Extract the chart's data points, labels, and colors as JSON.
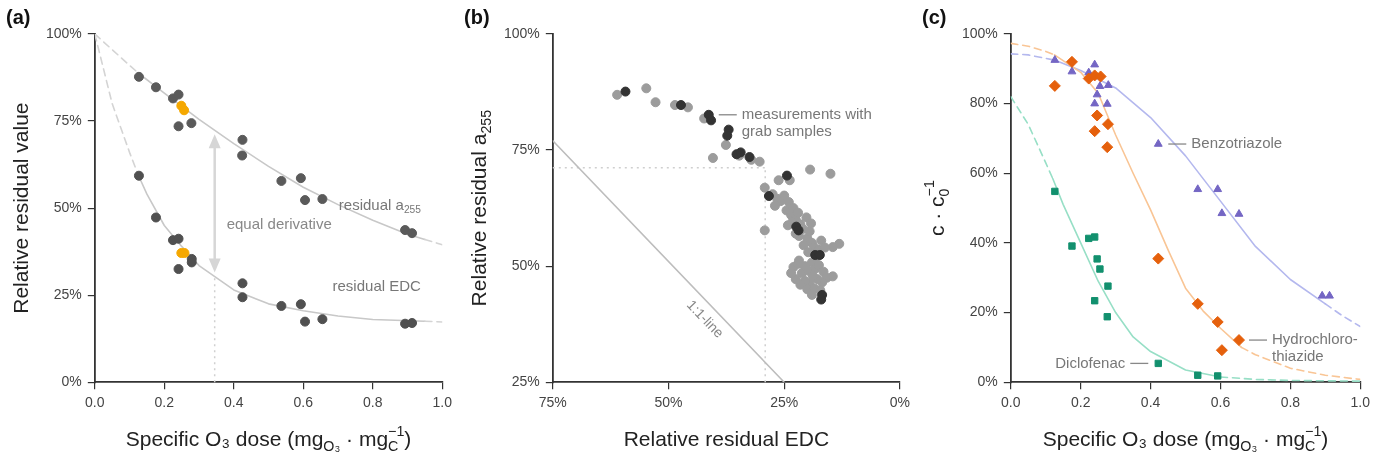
{
  "chart_data": [
    {
      "type": "scatter",
      "title": "(a)",
      "xlabel": "Specific O₃ dose (mg$_{O₃}$ · mg$_{C}$$^{−1}$)",
      "ylabel": "Relative residual value",
      "xlim": [
        0,
        1
      ],
      "ylim": [
        0,
        100
      ],
      "xticks": [
        {
          "value": 0,
          "label": "0.0"
        },
        0.2,
        0.4,
        0.6,
        0.8,
        {
          "value": 1,
          "label": "1.0"
        }
      ],
      "yticks": [
        {
          "value": 0,
          "label": "0%"
        },
        {
          "value": 25,
          "label": "25%"
        },
        {
          "value": 50,
          "label": "50%"
        },
        {
          "value": 75,
          "label": "75%"
        },
        {
          "value": 100,
          "label": "100%"
        }
      ],
      "series": [
        {
          "type": "line",
          "color": "#d4d4d4",
          "line_style": "dashed",
          "marker": "none",
          "x": [
            0,
            0.05,
            0.1,
            0.125
          ],
          "values": [
            100,
            95.5,
            91,
            88.8
          ]
        },
        {
          "type": "line",
          "name": "residual a$_{255}$",
          "color": "#c8c8c8",
          "line_style": "solid",
          "marker": "none",
          "x": [
            0.125,
            0.2,
            0.3,
            0.4,
            0.5,
            0.6,
            0.7,
            0.8,
            0.9,
            0.95
          ],
          "values": [
            88.8,
            83,
            75.5,
            68.5,
            62,
            56,
            51,
            46.5,
            42.5,
            41
          ]
        },
        {
          "type": "line",
          "color": "#d4d4d4",
          "line_style": "dashed",
          "marker": "none",
          "x": [
            0.95,
            1
          ],
          "values": [
            41,
            39.5
          ]
        },
        {
          "type": "line",
          "color": "#d4d4d4",
          "line_style": "dashed",
          "marker": "none",
          "x": [
            0,
            0.05,
            0.1,
            0.125
          ],
          "values": [
            100,
            80,
            66,
            59.5
          ]
        },
        {
          "type": "line",
          "name": "residual EDC",
          "color": "#c8c8c8",
          "line_style": "solid",
          "marker": "none",
          "x": [
            0.125,
            0.15,
            0.2,
            0.25,
            0.3,
            0.4,
            0.5,
            0.6,
            0.7,
            0.8,
            0.95
          ],
          "values": [
            59.5,
            54,
            45,
            39,
            33.5,
            26.5,
            22.5,
            20.5,
            19,
            18,
            17.5
          ]
        },
        {
          "type": "line",
          "color": "#d4d4d4",
          "line_style": "dashed",
          "marker": "none",
          "x": [
            0.95,
            1
          ],
          "values": [
            17.5,
            17.3
          ]
        },
        {
          "color": "#5a5a5a",
          "marker": "circle",
          "x": [
            0.127,
            0.176,
            0.225,
            0.241,
            0.241,
            0.278,
            0.425,
            0.424,
            0.537,
            0.593,
            0.605,
            0.655,
            0.893,
            0.913
          ],
          "values": [
            87.7,
            84.7,
            81.5,
            82.6,
            73.5,
            74.4,
            69.6,
            65.1,
            57.8,
            58.6,
            52.3,
            52.6,
            43.7,
            42.8
          ]
        },
        {
          "color": "#f5a800",
          "marker": "circle",
          "x": [
            0.249,
            0.257
          ],
          "values": [
            79.4,
            78.1
          ]
        },
        {
          "color": "#505050",
          "marker": "circle",
          "x": [
            0.127,
            0.176,
            0.225,
            0.241,
            0.241,
            0.279,
            0.279,
            0.425,
            0.425,
            0.537,
            0.593,
            0.605,
            0.655,
            0.893,
            0.913
          ],
          "values": [
            59.3,
            47.3,
            40.8,
            41.2,
            32.5,
            35.4,
            34.4,
            28.4,
            24.4,
            21.9,
            22.4,
            17.4,
            18.1,
            16.8,
            17.0
          ]
        },
        {
          "color": "#f5a800",
          "marker": "circle",
          "x": [
            0.249,
            0.258
          ],
          "values": [
            37.1,
            37.1
          ]
        }
      ],
      "ref_lines": [
        {
          "axis": "x",
          "value": 0.345,
          "color": "#d0d0d0",
          "line_style": "dotted"
        }
      ],
      "annotations": [
        "equal derivative"
      ]
    },
    {
      "type": "scatter",
      "title": "(b)",
      "xlabel": "Relative residual EDC",
      "ylabel": "Relative residual a$_{255}$",
      "xlim": [
        75,
        0
      ],
      "ylim": [
        25,
        100
      ],
      "xticks": [
        {
          "value": 75,
          "label": "75%"
        },
        {
          "value": 50,
          "label": "50%"
        },
        {
          "value": 25,
          "label": "25%"
        },
        {
          "value": 0,
          "label": "0%"
        }
      ],
      "yticks": [
        {
          "value": 25,
          "label": "25%"
        },
        {
          "value": 50,
          "label": "50%"
        },
        {
          "value": 75,
          "label": "75%"
        },
        {
          "value": 100,
          "label": "100%"
        }
      ],
      "series": [
        {
          "type": "line",
          "color": "#bdbdbd",
          "line_style": "solid",
          "marker": "none",
          "x": [
            75,
            25
          ],
          "values": [
            77,
            25
          ]
        },
        {
          "color": "#9c9c9c",
          "marker": "circle",
          "x": [
            61.1,
            54.8,
            52.8,
            48.6,
            45.8,
            42.3,
            40.4,
            37.6,
            34.7,
            32.1,
            30.3,
            19.4,
            15.0,
            26.2,
            23.8,
            29.2,
            29.2,
            13.1,
            14.5,
            27.5,
            26.5,
            25.8,
            27.0,
            25.0,
            24.0,
            24.5,
            23.5,
            23.0,
            22.5,
            22.0,
            21.5,
            23.2,
            21.0,
            21.8,
            20.0,
            19.5,
            19.0,
            20.8,
            18.5,
            19.8,
            17.5,
            18.0,
            22.5,
            24.2,
            20.2,
            19.2,
            17.0,
            16.2,
            23.0,
            22.0,
            21.2,
            20.5,
            19.8,
            19.0,
            18.2,
            17.5,
            16.5,
            15.8,
            16.8,
            17.8,
            18.8,
            19.5,
            20.5,
            21.5,
            22.5,
            20.0,
            18.5,
            17.2,
            19.0,
            21.8,
            14.5,
            23.5
          ],
          "values": [
            86.9,
            88.3,
            85.3,
            84.7,
            84.2,
            81.8,
            73.3,
            76.1,
            73.8,
            72.9,
            72.5,
            70.8,
            69.9,
            68.5,
            68.5,
            66.9,
            57.7,
            54.8,
            54.1,
            65.5,
            64.5,
            64.0,
            63.0,
            65.2,
            63.8,
            62.0,
            61.0,
            62.5,
            60.0,
            61.5,
            59.0,
            59.5,
            58.0,
            56.5,
            56.0,
            57.5,
            55.0,
            54.5,
            54.0,
            53.0,
            53.5,
            52.0,
            57.0,
            58.8,
            60.5,
            59.2,
            55.5,
            54.0,
            49.8,
            50.5,
            48.5,
            50.0,
            49.0,
            50.8,
            49.5,
            50.2,
            48.8,
            47.5,
            46.5,
            47.2,
            47.9,
            46.2,
            46.8,
            46.0,
            47.2,
            45.0,
            45.2,
            44.8,
            43.8,
            51.2,
            47.8,
            48.5
          ]
        },
        {
          "color": "#333333",
          "marker": "circle",
          "x": [
            59.3,
            47.3,
            41.3,
            40.8,
            37.0,
            37.3,
            35.3,
            34.4,
            32.5,
            24.4,
            28.3,
            22.4,
            21.9,
            18.3,
            17.3,
            16.8,
            17.0
          ],
          "values": [
            87.6,
            84.7,
            82.6,
            81.4,
            79.4,
            78.1,
            74.1,
            74.5,
            73.5,
            69.5,
            65.1,
            58.5,
            57.7,
            52.4,
            52.4,
            43.8,
            42.8
          ]
        }
      ],
      "ref_lines": [
        {
          "axis": "x",
          "value": 29.1,
          "color": "#cfcfcf",
          "line_style": "dotted"
        },
        {
          "axis": "y",
          "value": 71.2,
          "color": "#cfcfcf",
          "line_style": "dotted"
        }
      ],
      "annotations": [
        {
          "text": "measurements with\ngrab samples",
          "x": 41.3,
          "y": 82.6
        },
        "1:1-line"
      ]
    },
    {
      "type": "scatter",
      "title": "(c)",
      "xlabel": "Specific O₃ dose (mg$_{O₃}$ · mg$_{C}$$^{−1}$)",
      "ylabel": "c · c$_{0}$$^{−1}$",
      "xlim": [
        0,
        1
      ],
      "ylim": [
        0,
        100
      ],
      "xticks": [
        {
          "value": 0,
          "label": "0.0"
        },
        0.2,
        0.4,
        0.6,
        0.8,
        {
          "value": 1,
          "label": "1.0"
        }
      ],
      "yticks": [
        {
          "value": 0,
          "label": "0%"
        },
        {
          "value": 20,
          "label": "20%"
        },
        {
          "value": 40,
          "label": "40%"
        },
        {
          "value": 60,
          "label": "60%"
        },
        {
          "value": 80,
          "label": "80%"
        },
        {
          "value": 100,
          "label": "100%"
        }
      ],
      "series": [
        {
          "type": "line",
          "color": "#b4b8ee",
          "line_style": "dashed",
          "marker": "none",
          "x": [
            0,
            0.05,
            0.1,
            0.125
          ],
          "values": [
            94.3,
            94,
            93,
            92.5
          ]
        },
        {
          "type": "line",
          "color": "#b4b8ee",
          "line_style": "solid",
          "marker": "none",
          "x": [
            0.125,
            0.2,
            0.3,
            0.4,
            0.5,
            0.6,
            0.7,
            0.8,
            0.9
          ],
          "values": [
            92.5,
            89.5,
            84.5,
            76,
            65,
            52,
            39,
            29.5,
            22.5
          ]
        },
        {
          "type": "line",
          "color": "#b4b8ee",
          "line_style": "dashed",
          "marker": "none",
          "x": [
            0.9,
            0.95,
            1
          ],
          "values": [
            22.5,
            19,
            16
          ]
        },
        {
          "type": "line",
          "color": "#f9c595",
          "line_style": "dashed",
          "marker": "none",
          "x": [
            0,
            0.05,
            0.1,
            0.125
          ],
          "values": [
            97.3,
            96.5,
            95,
            94
          ]
        },
        {
          "type": "line",
          "color": "#f9c595",
          "line_style": "solid",
          "marker": "none",
          "x": [
            0.125,
            0.2,
            0.25,
            0.3,
            0.35,
            0.4,
            0.45,
            0.5,
            0.55,
            0.6,
            0.66
          ],
          "values": [
            94,
            89,
            83,
            71,
            60,
            49.5,
            38,
            27,
            20.5,
            15.5,
            10
          ]
        },
        {
          "type": "line",
          "color": "#f9c595",
          "line_style": "dashed",
          "marker": "none",
          "x": [
            0.66,
            0.7,
            0.8,
            0.9,
            1
          ],
          "values": [
            10,
            7.9,
            4,
            2,
            0.8
          ]
        },
        {
          "type": "line",
          "color": "#97dfc6",
          "line_style": "dashed",
          "marker": "none",
          "x": [
            0,
            0.05,
            0.1,
            0.12
          ],
          "values": [
            82,
            74,
            63,
            58.5
          ]
        },
        {
          "type": "line",
          "color": "#97dfc6",
          "line_style": "solid",
          "marker": "none",
          "x": [
            0.12,
            0.15,
            0.2,
            0.25,
            0.3,
            0.35,
            0.4,
            0.5,
            0.6
          ],
          "values": [
            58.5,
            51,
            40,
            29,
            20,
            13,
            8.8,
            3.5,
            1.5
          ]
        },
        {
          "type": "line",
          "color": "#97dfc6",
          "line_style": "dashed",
          "marker": "none",
          "x": [
            0.6,
            0.7,
            0.8,
            1
          ],
          "values": [
            1.5,
            0.8,
            0.5,
            0.3
          ]
        },
        {
          "color": "#7466c4",
          "marker": "triangle",
          "x": [
            0.126,
            0.175,
            0.223,
            0.24,
            0.247,
            0.255,
            0.24,
            0.279,
            0.276,
            0.422,
            0.535,
            0.592,
            0.604,
            0.653,
            0.891,
            0.912
          ],
          "values": [
            92.5,
            89.2,
            88.9,
            91.2,
            82.6,
            85.0,
            80.0,
            85.3,
            79.9,
            68.4,
            55.4,
            55.4,
            48.5,
            48.3,
            24.8,
            24.8
          ]
        },
        {
          "color": "#e5600c",
          "marker": "diamond",
          "x": [
            0.126,
            0.175,
            0.223,
            0.24,
            0.257,
            0.247,
            0.24,
            0.278,
            0.276,
            0.422,
            0.535,
            0.592,
            0.604,
            0.653
          ],
          "values": [
            85.1,
            92.0,
            87.2,
            88.1,
            87.8,
            76.6,
            72.1,
            74.1,
            67.5,
            35.5,
            22.5,
            17.3,
            9.2,
            12.1
          ]
        },
        {
          "color": "#12906e",
          "marker": "square",
          "x": [
            0.126,
            0.175,
            0.223,
            0.24,
            0.247,
            0.255,
            0.278,
            0.24,
            0.276,
            0.422,
            0.535,
            0.592
          ],
          "values": [
            54.8,
            39.1,
            41.3,
            41.7,
            35.4,
            32.5,
            27.6,
            23.4,
            18.8,
            5.4,
            2.0,
            1.8
          ]
        }
      ],
      "annotations": [
        {
          "text": "Benzotriazole",
          "x": 0.422,
          "y": 68.4
        },
        {
          "text": "Hydrochloro-\nthiazide",
          "x": 0.653,
          "y": 12.1
        },
        {
          "text": "Diclofenac",
          "x": 0.422,
          "y": 5.4
        }
      ]
    }
  ]
}
